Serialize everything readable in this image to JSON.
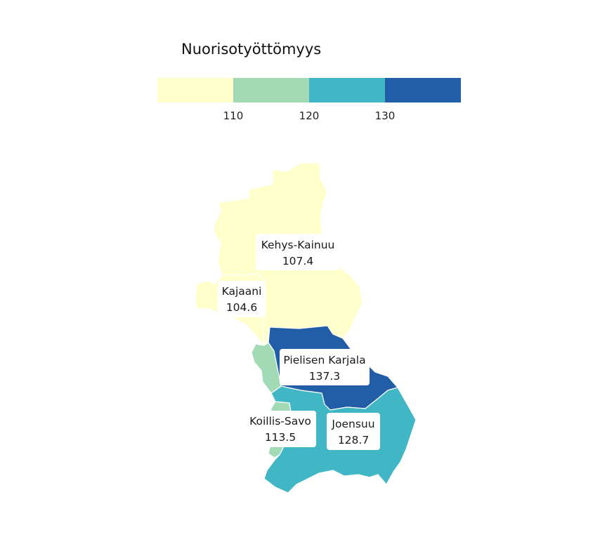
{
  "legend": {
    "title": "Nuorisotyöttömyys",
    "breaks": [
      "110",
      "120",
      "130"
    ],
    "colors": [
      "#ffffcc",
      "#a1dab4",
      "#41b6c4",
      "#225ea8"
    ]
  },
  "regions": [
    {
      "key": "kehys_kainuu",
      "name": "Kehys-Kainuu",
      "value": "107.4",
      "fill": "#ffffcc"
    },
    {
      "key": "kajaani",
      "name": "Kajaani",
      "value": "104.6",
      "fill": "#ffffcc"
    },
    {
      "key": "pielisen_karjala",
      "name": "Pielisen Karjala",
      "value": "137.3",
      "fill": "#225ea8"
    },
    {
      "key": "koillis_savo",
      "name": "Koillis-Savo",
      "value": "113.5",
      "fill": "#a1dab4"
    },
    {
      "key": "joensuu",
      "name": "Joensuu",
      "value": "128.7",
      "fill": "#41b6c4"
    }
  ]
}
